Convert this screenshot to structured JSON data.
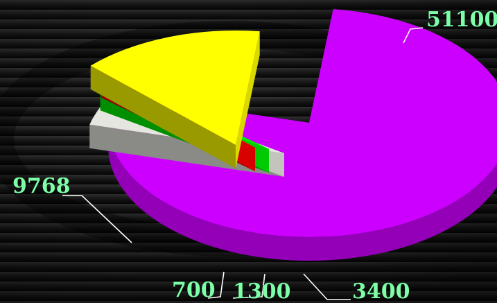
{
  "chart_data": {
    "type": "pie",
    "style": "3d-exploded",
    "title": "",
    "legend": "none",
    "slices": [
      {
        "value": 51100,
        "label": "51100",
        "color": "#cc00ff"
      },
      {
        "value": 3400,
        "label": "3400",
        "color": "#e6e6e0"
      },
      {
        "value": 1300,
        "label": "1300",
        "color": "#00ee00"
      },
      {
        "value": 700,
        "label": "700",
        "color": "#ff0000"
      },
      {
        "value": 9768,
        "label": "9768",
        "color": "#ffff00"
      }
    ]
  }
}
